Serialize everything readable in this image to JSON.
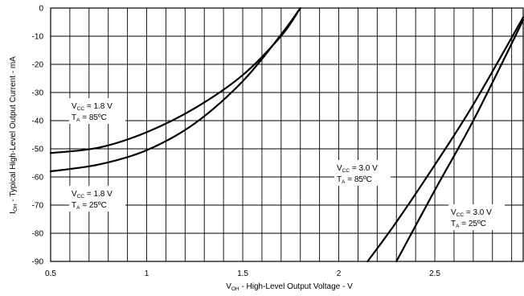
{
  "chart_data": {
    "type": "line",
    "title": "",
    "xlabel": {
      "main": "V",
      "sub": "OH",
      "rest": " - High-Level Output Voltage - V"
    },
    "ylabel": {
      "main": "I",
      "sub": "OH",
      "rest": "  - Typical High-Level Output Current - mA"
    },
    "xlim": [
      0.5,
      2.96
    ],
    "ylim": [
      -90,
      0
    ],
    "grid": true,
    "x_ticks": [
      {
        "value": 0.5,
        "label": "0.5"
      },
      {
        "value": 1.0,
        "label": "1"
      },
      {
        "value": 1.5,
        "label": "1.5"
      },
      {
        "value": 2.0,
        "label": "2"
      },
      {
        "value": 2.5,
        "label": "2.5"
      }
    ],
    "y_ticks": [
      {
        "value": 0,
        "label": "0"
      },
      {
        "value": -10,
        "label": "-10"
      },
      {
        "value": -20,
        "label": "-20"
      },
      {
        "value": -30,
        "label": "-30"
      },
      {
        "value": -40,
        "label": "-40"
      },
      {
        "value": -50,
        "label": "-50"
      },
      {
        "value": -60,
        "label": "-60"
      },
      {
        "value": -70,
        "label": "-70"
      },
      {
        "value": -80,
        "label": "-80"
      },
      {
        "value": -90,
        "label": "-90"
      }
    ],
    "series": [
      {
        "annotation": {
          "vcc_label": "V",
          "vcc_sub": "CC",
          "vcc_value": " = 1.8 V",
          "ta_label": "T",
          "ta_sub": "A",
          "ta_value": " = 85ºC"
        },
        "x": [
          0.5,
          0.75,
          1.0,
          1.25,
          1.5,
          1.7,
          1.8
        ],
        "y": [
          -51.5,
          -49.6,
          -44.1,
          -35.6,
          -23.8,
          -9.9,
          0
        ]
      },
      {
        "annotation": {
          "vcc_label": "V",
          "vcc_sub": "CC",
          "vcc_value": " = 1.8 V",
          "ta_label": "T",
          "ta_sub": "A",
          "ta_value": " = 25ºC"
        },
        "x": [
          0.5,
          0.75,
          1.0,
          1.25,
          1.5,
          1.7,
          1.8
        ],
        "y": [
          -58.0,
          -55.6,
          -50.5,
          -41.0,
          -26.0,
          -9.4,
          0
        ]
      },
      {
        "annotation": {
          "vcc_label": "V",
          "vcc_sub": "CC",
          "vcc_value": " = 3.0 V",
          "ta_label": "T",
          "ta_sub": "A",
          "ta_value": " = 85ºC"
        },
        "x": [
          2.15,
          2.3,
          2.5,
          2.7,
          2.96
        ],
        "y": [
          -90,
          -76.0,
          -55.7,
          -34.3,
          -3.3
        ]
      },
      {
        "annotation": {
          "vcc_label": "V",
          "vcc_sub": "CC",
          "vcc_value": " = 3.0 V",
          "ta_label": "T",
          "ta_sub": "A",
          "ta_value": " = 25ºC"
        },
        "x": [
          2.3,
          2.5,
          2.7,
          2.96
        ],
        "y": [
          -90,
          -64.7,
          -40.0,
          -4.3
        ]
      }
    ]
  }
}
